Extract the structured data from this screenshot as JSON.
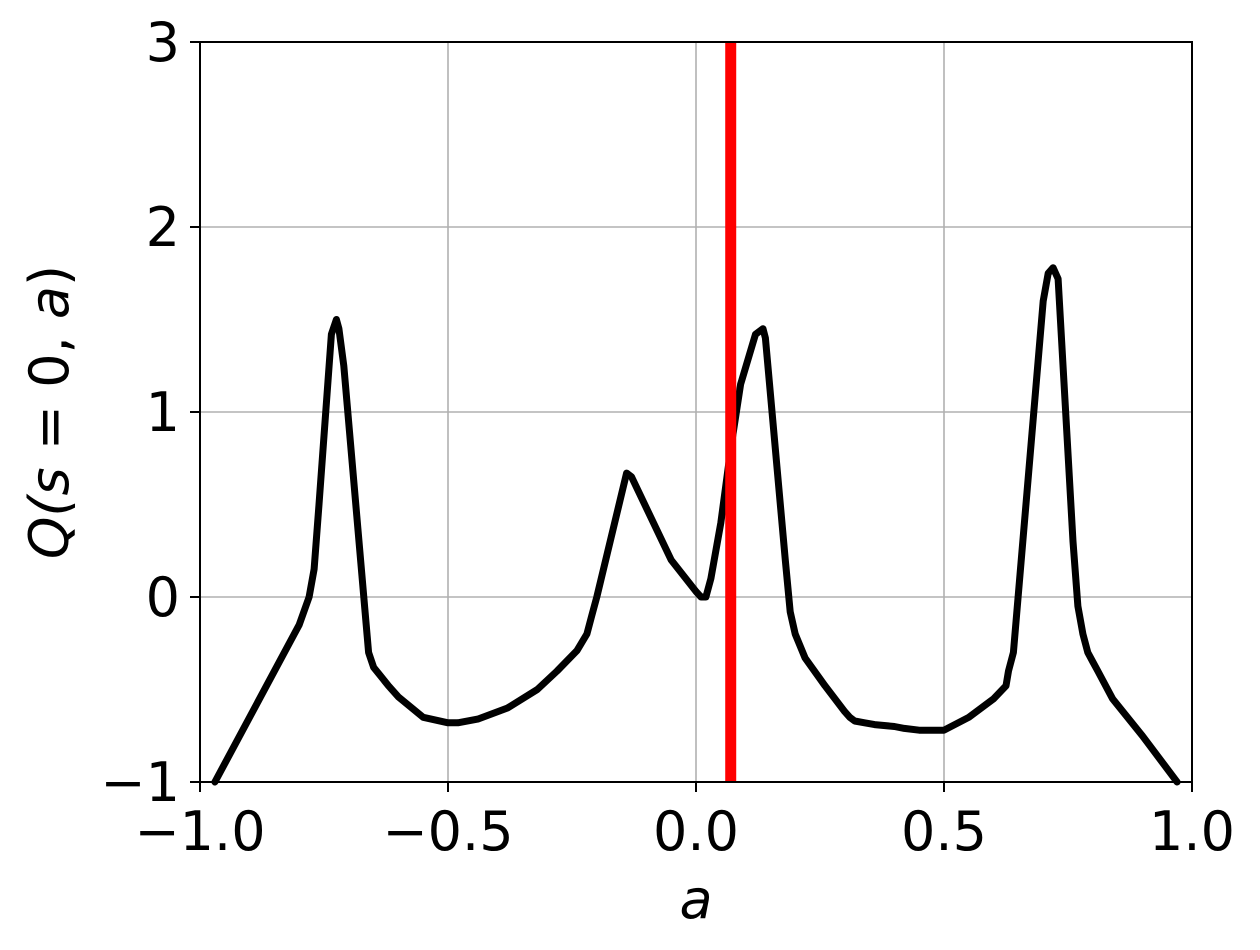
{
  "chart_data": {
    "type": "line",
    "xlabel": "a",
    "ylabel_parts": [
      "Q(",
      "s",
      " = 0, ",
      "a",
      ")"
    ],
    "xlim": [
      -1.0,
      1.0
    ],
    "ylim": [
      -1,
      3
    ],
    "grid": true,
    "x_ticks": [
      -1.0,
      -0.5,
      0.0,
      0.5,
      1.0
    ],
    "x_tick_labels": [
      "−1.0",
      "−0.5",
      "0.0",
      "0.5",
      "1.0"
    ],
    "y_ticks": [
      -1,
      0,
      1,
      2,
      3
    ],
    "y_tick_labels": [
      "−1",
      "0",
      "1",
      "2",
      "3"
    ],
    "series": [
      {
        "color": "#000000",
        "x": [
          -0.97,
          -0.8,
          -0.78,
          -0.77,
          -0.76,
          -0.735,
          -0.725,
          -0.72,
          -0.71,
          -0.665,
          -0.66,
          -0.65,
          -0.62,
          -0.6,
          -0.55,
          -0.5,
          -0.48,
          -0.44,
          -0.38,
          -0.32,
          -0.28,
          -0.24,
          -0.22,
          -0.21,
          -0.2,
          -0.14,
          -0.13,
          -0.05,
          0.0,
          0.01,
          0.02,
          0.03,
          0.05,
          0.07,
          0.09,
          0.12,
          0.135,
          0.14,
          0.18,
          0.19,
          0.2,
          0.22,
          0.26,
          0.3,
          0.31,
          0.32,
          0.34,
          0.36,
          0.4,
          0.42,
          0.45,
          0.48,
          0.5,
          0.55,
          0.6,
          0.625,
          0.63,
          0.64,
          0.7,
          0.71,
          0.72,
          0.73,
          0.76,
          0.77,
          0.78,
          0.79,
          0.8,
          0.81,
          0.84,
          0.9,
          0.97
        ],
        "y": [
          -1.0,
          -0.15,
          0.0,
          0.15,
          0.5,
          1.42,
          1.5,
          1.45,
          1.25,
          -0.15,
          -0.3,
          -0.38,
          -0.48,
          -0.54,
          -0.65,
          -0.68,
          -0.68,
          -0.66,
          -0.6,
          -0.5,
          -0.4,
          -0.29,
          -0.2,
          -0.1,
          0.0,
          0.67,
          0.65,
          0.2,
          0.03,
          0.0,
          0.0,
          0.1,
          0.4,
          0.8,
          1.15,
          1.42,
          1.45,
          1.4,
          0.2,
          -0.08,
          -0.2,
          -0.33,
          -0.48,
          -0.62,
          -0.65,
          -0.67,
          -0.68,
          -0.69,
          -0.7,
          -0.71,
          -0.72,
          -0.72,
          -0.72,
          -0.65,
          -0.55,
          -0.48,
          -0.4,
          -0.3,
          1.6,
          1.75,
          1.78,
          1.72,
          0.3,
          -0.05,
          -0.2,
          -0.3,
          -0.35,
          -0.4,
          -0.55,
          -0.75,
          -1.0
        ]
      },
      {
        "color": "#ff0000",
        "type": "vline",
        "x": 0.07
      }
    ]
  }
}
